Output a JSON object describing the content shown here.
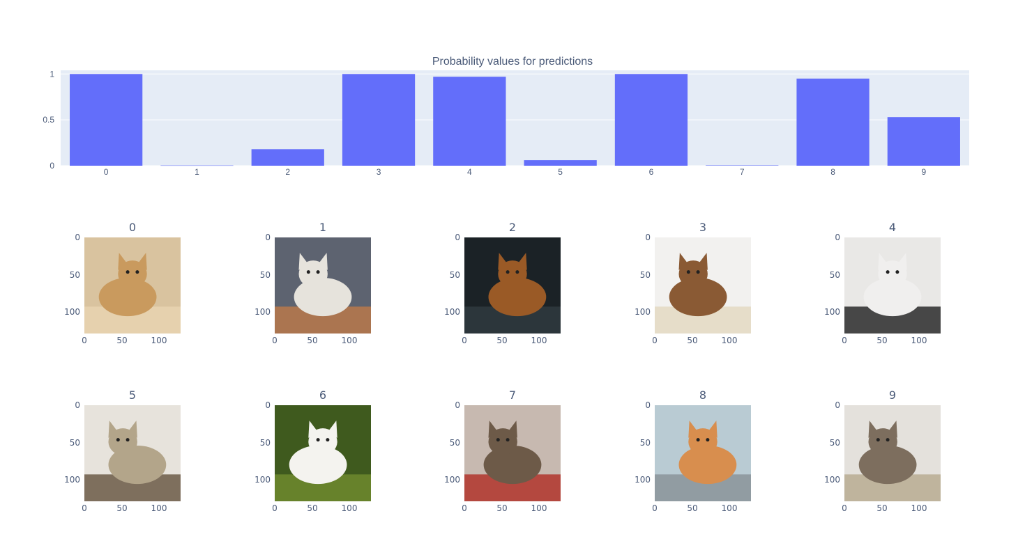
{
  "chart_data": {
    "type": "bar",
    "title": "Probability values for predictions",
    "categories": [
      "0",
      "1",
      "2",
      "3",
      "4",
      "5",
      "6",
      "7",
      "8",
      "9"
    ],
    "values": [
      1.0,
      0.003,
      0.18,
      1.0,
      0.97,
      0.06,
      1.0,
      0.004,
      0.95,
      0.53
    ],
    "ylim": [
      0,
      1.04
    ],
    "yticks": [
      0,
      0.5,
      1
    ],
    "ytick_labels": [
      "0",
      "0.5",
      "1"
    ],
    "bar_color": "#636efa",
    "plot_bg": "#e5ecf6",
    "grid": true,
    "xlabel": "",
    "ylabel": ""
  },
  "images": [
    {
      "title": "0",
      "icon": "golden-retriever-puppy",
      "palette": [
        "#d9c39f",
        "#c99a5e",
        "#e8d4b0"
      ]
    },
    {
      "title": "1",
      "icon": "white-gray-cat-lying",
      "palette": [
        "#5d6370",
        "#e6e3dc",
        "#b8784a"
      ]
    },
    {
      "title": "2",
      "icon": "orange-cat-dark-background",
      "palette": [
        "#1b2226",
        "#9a5a26",
        "#2f3a40"
      ]
    },
    {
      "title": "3",
      "icon": "dog-in-bear-hat",
      "palette": [
        "#f2f1ef",
        "#8a5a34",
        "#e4d9c2"
      ]
    },
    {
      "title": "4",
      "icon": "pug-in-unicorn-costume",
      "palette": [
        "#e9e8e6",
        "#f0efee",
        "#2a2a2a"
      ]
    },
    {
      "title": "5",
      "icon": "cat-in-basket",
      "palette": [
        "#e7e3dc",
        "#b3a58a",
        "#6b5a46"
      ]
    },
    {
      "title": "6",
      "icon": "white-poodle-in-grass",
      "palette": [
        "#3f5a1e",
        "#f4f3ef",
        "#6f8a2e"
      ]
    },
    {
      "title": "7",
      "icon": "tabby-cat-on-blanket",
      "palette": [
        "#c7b9b0",
        "#6d5a48",
        "#b0342c"
      ]
    },
    {
      "title": "8",
      "icon": "pomeranian-puppy",
      "palette": [
        "#b9cbd3",
        "#d88e4e",
        "#8a9499"
      ]
    },
    {
      "title": "9",
      "icon": "cat-sleeping-in-basket",
      "palette": [
        "#e4e1dc",
        "#7d6e5e",
        "#b9ab92"
      ]
    }
  ],
  "image_axes": {
    "yticks": [
      "0",
      "50",
      "100"
    ],
    "xticks": [
      "0",
      "50",
      "100"
    ]
  }
}
